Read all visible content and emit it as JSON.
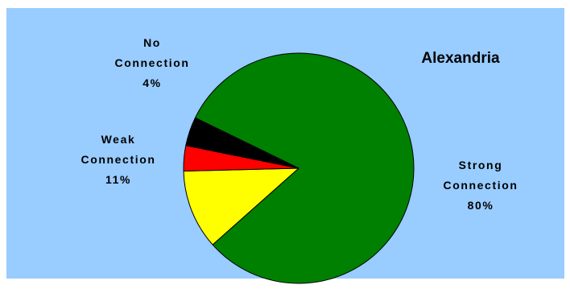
{
  "chart_data": {
    "type": "pie",
    "title": "Alexandria",
    "slices": [
      {
        "label": "Strong Connection",
        "value": 80,
        "display": "80%",
        "color": "#008000"
      },
      {
        "label": "Weak Connection",
        "value": 11,
        "display": "11%",
        "color": "#ffff00"
      },
      {
        "label": "",
        "value": 3.5,
        "display": "",
        "color": "#ff0000"
      },
      {
        "label": "No Connection",
        "value": 4,
        "display": "4%",
        "color": "#000000"
      }
    ],
    "label_lines": {
      "strong": [
        "Strong",
        "Connection",
        "80%"
      ],
      "weak": [
        "Weak",
        "Connection",
        "11%"
      ],
      "none": [
        "No",
        "Connection",
        "4%"
      ]
    },
    "legend": "none",
    "colors": {
      "plot_background": "#99ccff",
      "outline": "#000000"
    }
  }
}
